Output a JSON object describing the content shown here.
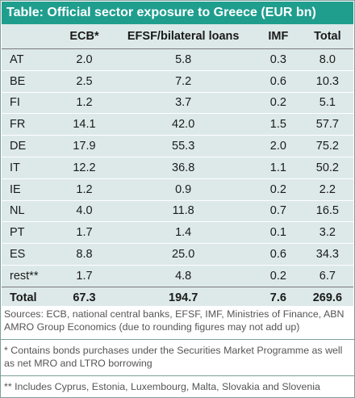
{
  "title": "Table: Official sector exposure to Greece (EUR bn)",
  "columns": [
    "",
    "ECB*",
    "EFSF/bilateral loans",
    "IMF",
    "Total"
  ],
  "rows": [
    {
      "country": "AT",
      "ecb": "2.0",
      "efsf": "5.8",
      "imf": "0.3",
      "total": "8.0"
    },
    {
      "country": "BE",
      "ecb": "2.5",
      "efsf": "7.2",
      "imf": "0.6",
      "total": "10.3"
    },
    {
      "country": "FI",
      "ecb": "1.2",
      "efsf": "3.7",
      "imf": "0.2",
      "total": "5.1"
    },
    {
      "country": "FR",
      "ecb": "14.1",
      "efsf": "42.0",
      "imf": "1.5",
      "total": "57.7"
    },
    {
      "country": "DE",
      "ecb": "17.9",
      "efsf": "55.3",
      "imf": "2.0",
      "total": "75.2"
    },
    {
      "country": "IT",
      "ecb": "12.2",
      "efsf": "36.8",
      "imf": "1.1",
      "total": "50.2"
    },
    {
      "country": "IE",
      "ecb": "1.2",
      "efsf": "0.9",
      "imf": "0.2",
      "total": "2.2"
    },
    {
      "country": "NL",
      "ecb": "4.0",
      "efsf": "11.8",
      "imf": "0.7",
      "total": "16.5"
    },
    {
      "country": "PT",
      "ecb": "1.7",
      "efsf": "1.4",
      "imf": "0.1",
      "total": "3.2"
    },
    {
      "country": "ES",
      "ecb": "8.8",
      "efsf": "25.0",
      "imf": "0.6",
      "total": "34.3"
    },
    {
      "country": "rest**",
      "ecb": "1.7",
      "efsf": "4.8",
      "imf": "0.2",
      "total": "6.7"
    }
  ],
  "totals": {
    "label": "Total",
    "ecb": "67.3",
    "efsf": "194.7",
    "imf": "7.6",
    "total": "269.6"
  },
  "footnotes": {
    "sources": "Sources: ECB, national central banks, EFSF, IMF, Ministries of Finance, ABN AMRO Group Economics (due to rounding figures may not add up)",
    "note_ecb": "* Contains bonds purchases under the Securities Market Programme as well as net MRO and LTRO borrowing",
    "note_rest": "** Includes Cyprus, Estonia, Luxembourg, Malta, Slovakia and Slovenia"
  },
  "colors": {
    "title_bg": "#1f9e8e",
    "table_bg": "#dde9e9",
    "border": "#7fa09b"
  }
}
